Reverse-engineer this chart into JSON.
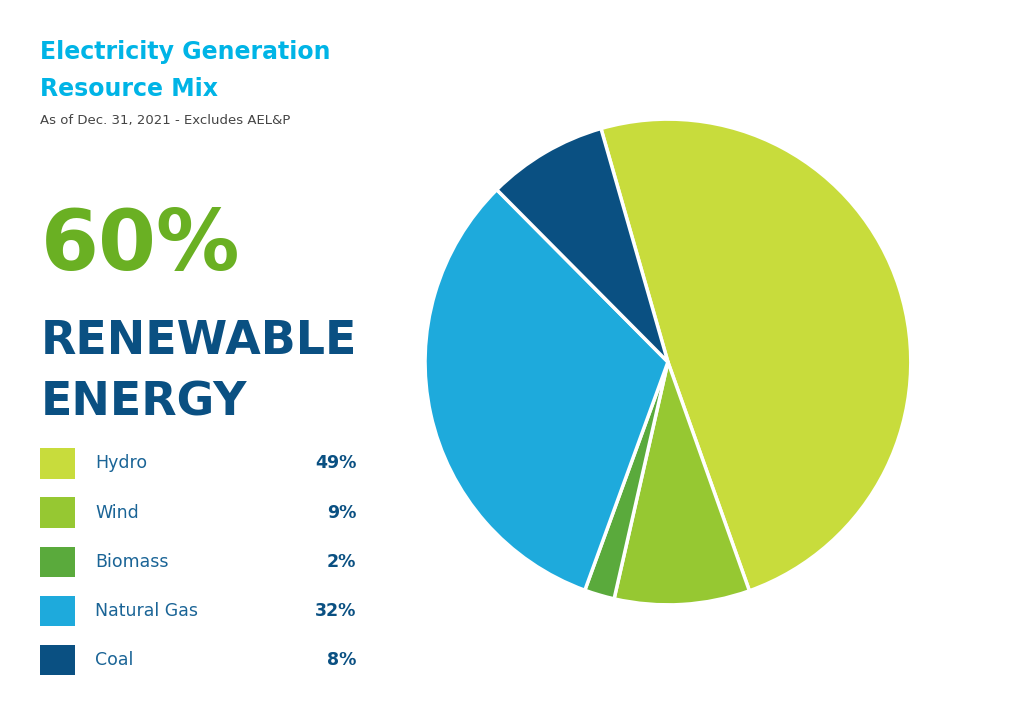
{
  "title_line1": "Electricity Generation",
  "title_line2": "Resource Mix",
  "subtitle": "As of Dec. 31, 2021 - Excludes AEL&P",
  "big_percent": "60%",
  "big_label_line1": "RENEWABLE",
  "big_label_line2": "ENERGY",
  "categories": [
    "Hydro",
    "Wind",
    "Biomass",
    "Natural Gas",
    "Coal"
  ],
  "values": [
    49,
    9,
    2,
    32,
    8
  ],
  "percentages": [
    "49%",
    "9%",
    "2%",
    "32%",
    "8%"
  ],
  "colors": [
    "#c8dc3c",
    "#96c832",
    "#5aaa3c",
    "#1eaadc",
    "#0a5082"
  ],
  "title_color": "#00b4e6",
  "subtitle_color": "#444444",
  "big_percent_color": "#6ab023",
  "big_label_color": "#0a5082",
  "legend_label_color": "#1a6496",
  "legend_pct_color": "#0a5082",
  "background_color": "#ffffff",
  "startangle": 106
}
